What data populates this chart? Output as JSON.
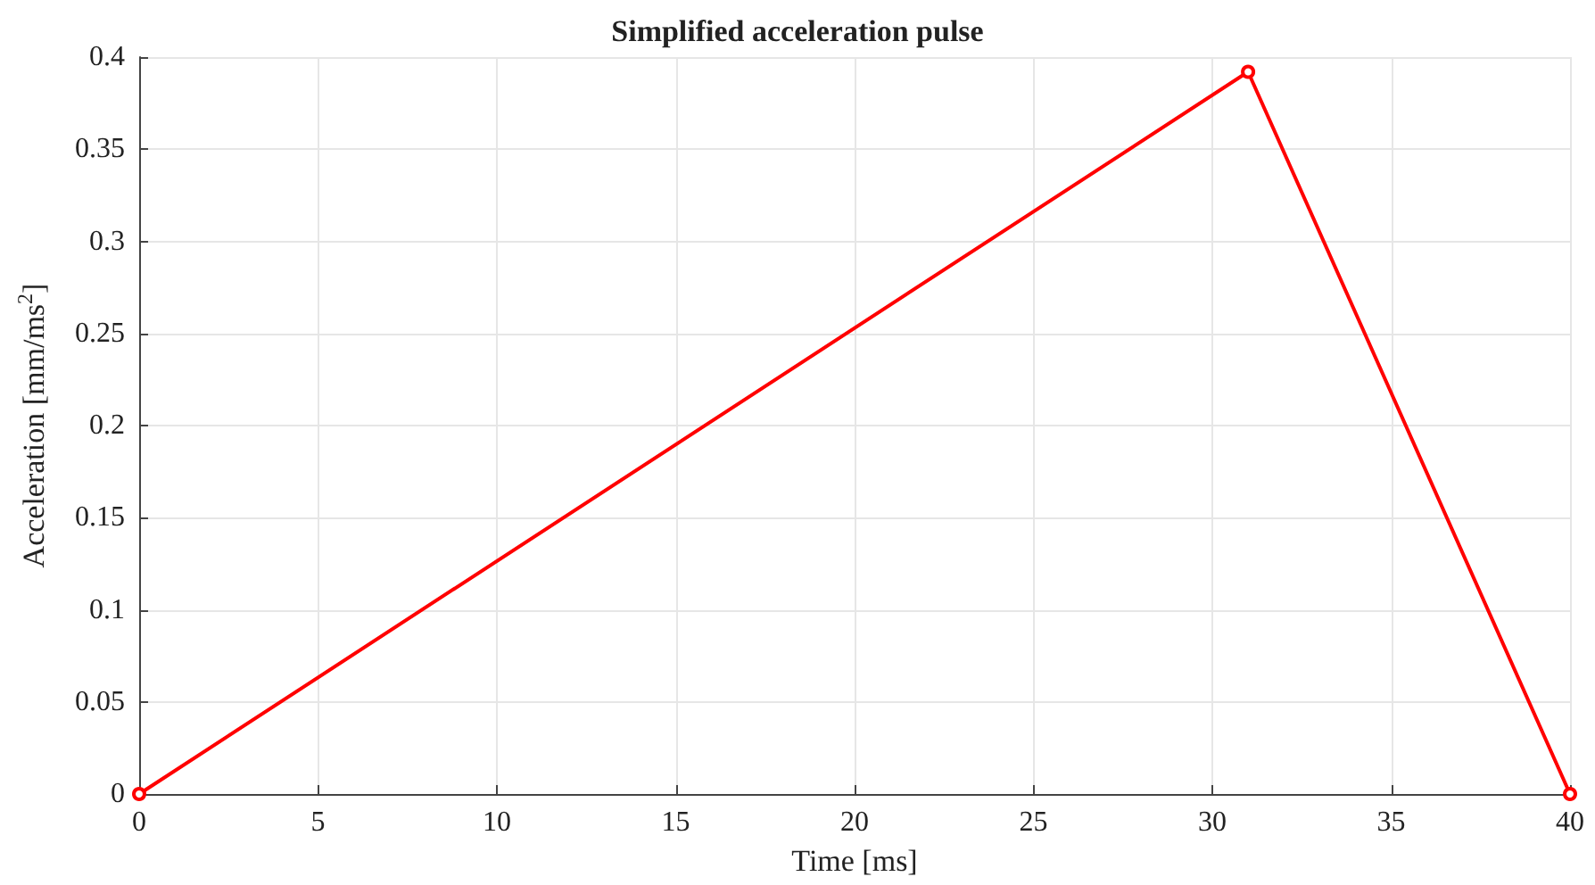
{
  "chart_data": {
    "type": "line",
    "title": "Simplified acceleration pulse",
    "xlabel": "Time [ms]",
    "ylabel": "Acceleration [mm/ms$^{2}$]",
    "x": [
      0,
      31,
      40
    ],
    "series": [
      {
        "color": "#ff0000",
        "values": [
          0,
          0.392,
          0
        ]
      }
    ],
    "xlim": [
      0,
      40
    ],
    "xticks": [
      0,
      5,
      10,
      15,
      20,
      25,
      30,
      35,
      40
    ],
    "ylim": [
      0,
      0.4
    ],
    "yticks": [
      0,
      0.05,
      0.1,
      0.15,
      0.2,
      0.25,
      0.3,
      0.35,
      0.4
    ],
    "grid": true,
    "marker": "circle",
    "line_style": "solid"
  }
}
